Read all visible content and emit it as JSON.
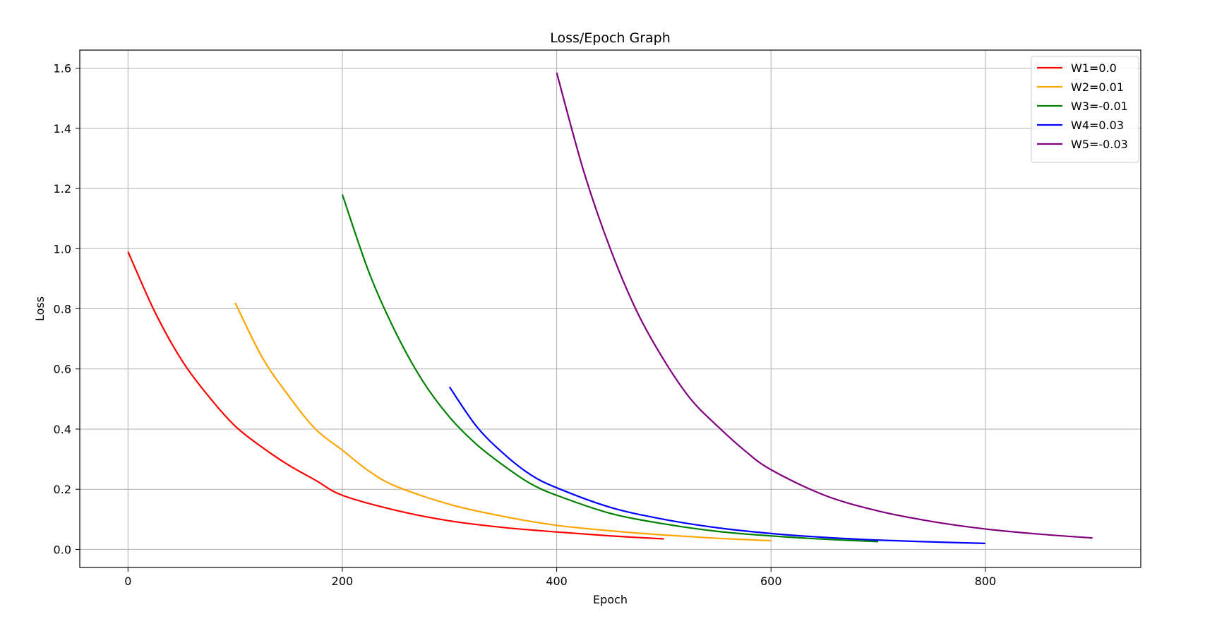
{
  "chart_data": {
    "type": "line",
    "title": "Loss/Epoch Graph",
    "xlabel": "Epoch",
    "ylabel": "Loss",
    "xlim": [
      -45,
      945
    ],
    "ylim": [
      -0.06,
      1.66
    ],
    "xticks": [
      0,
      200,
      400,
      600,
      800
    ],
    "yticks": [
      0.0,
      0.2,
      0.4,
      0.6,
      0.8,
      1.0,
      1.2,
      1.4,
      1.6
    ],
    "xtick_labels": [
      "0",
      "200",
      "400",
      "600",
      "800"
    ],
    "ytick_labels": [
      "0.0",
      "0.2",
      "0.4",
      "0.6",
      "0.8",
      "1.0",
      "1.2",
      "1.4",
      "1.6"
    ],
    "grid": true,
    "legend_position": "top-right",
    "series": [
      {
        "name": "W1=0.0",
        "color": "#ff0000",
        "x": [
          0,
          25,
          50,
          75,
          100,
          125,
          150,
          175,
          200,
          250,
          300,
          350,
          400,
          450,
          500
        ],
        "y": [
          0.99,
          0.79,
          0.63,
          0.51,
          0.41,
          0.34,
          0.28,
          0.23,
          0.18,
          0.13,
          0.095,
          0.073,
          0.058,
          0.045,
          0.035
        ]
      },
      {
        "name": "W2=0.01",
        "color": "#ffa500",
        "x": [
          100,
          125,
          150,
          175,
          200,
          225,
          250,
          300,
          350,
          400,
          450,
          500,
          550,
          600
        ],
        "y": [
          0.82,
          0.64,
          0.51,
          0.4,
          0.33,
          0.26,
          0.21,
          0.15,
          0.11,
          0.08,
          0.062,
          0.048,
          0.037,
          0.029
        ]
      },
      {
        "name": "W3=-0.01",
        "color": "#008000",
        "x": [
          200,
          225,
          250,
          275,
          300,
          325,
          350,
          375,
          400,
          450,
          500,
          550,
          600,
          650,
          700
        ],
        "y": [
          1.18,
          0.92,
          0.72,
          0.56,
          0.44,
          0.35,
          0.28,
          0.22,
          0.18,
          0.12,
          0.085,
          0.06,
          0.045,
          0.034,
          0.026
        ]
      },
      {
        "name": "W4=0.03",
        "color": "#0000ff",
        "x": [
          300,
          325,
          350,
          375,
          400,
          450,
          500,
          550,
          600,
          650,
          700,
          750,
          800
        ],
        "y": [
          0.54,
          0.41,
          0.32,
          0.25,
          0.205,
          0.14,
          0.1,
          0.072,
          0.053,
          0.04,
          0.031,
          0.025,
          0.02
        ]
      },
      {
        "name": "W5=-0.03",
        "color": "#800080",
        "x": [
          400,
          425,
          450,
          475,
          500,
          525,
          550,
          575,
          600,
          650,
          700,
          750,
          800,
          850,
          900
        ],
        "y": [
          1.585,
          1.26,
          1.0,
          0.79,
          0.63,
          0.5,
          0.41,
          0.33,
          0.265,
          0.18,
          0.128,
          0.093,
          0.068,
          0.051,
          0.038
        ]
      }
    ]
  }
}
